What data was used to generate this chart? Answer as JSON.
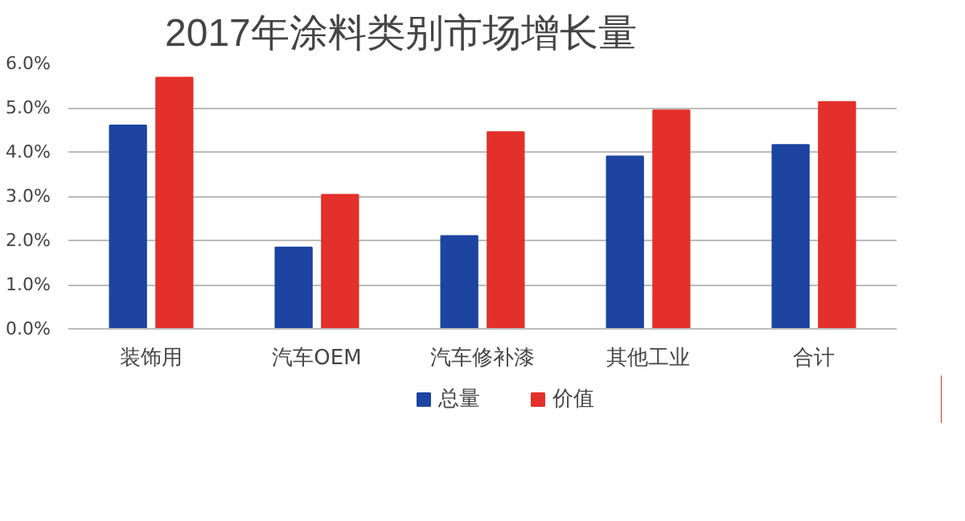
{
  "chart_data": {
    "type": "bar",
    "title": "2017年涂料类别市场增长量",
    "categories": [
      "装饰用",
      "汽车OEM",
      "汽车修补漆",
      "其他工业",
      "合计"
    ],
    "series": [
      {
        "name": "总量",
        "color": "#1c44a0",
        "values": [
          4.6,
          1.84,
          2.1,
          3.9,
          4.16
        ]
      },
      {
        "name": "价值",
        "color": "#e3302a",
        "values": [
          5.68,
          3.03,
          4.45,
          4.94,
          5.13
        ]
      }
    ],
    "ylim": [
      0,
      6.0
    ],
    "yticks": [
      {
        "value": 0,
        "label": "0.0%"
      },
      {
        "value": 1,
        "label": "1.0%"
      },
      {
        "value": 2,
        "label": "2.0%"
      },
      {
        "value": 3,
        "label": "3.0%"
      },
      {
        "value": 4,
        "label": "4.0%"
      },
      {
        "value": 5,
        "label": "5.0%"
      },
      {
        "value": 6,
        "label": "6.0%"
      }
    ],
    "grid": "y",
    "legend": "bottom"
  }
}
